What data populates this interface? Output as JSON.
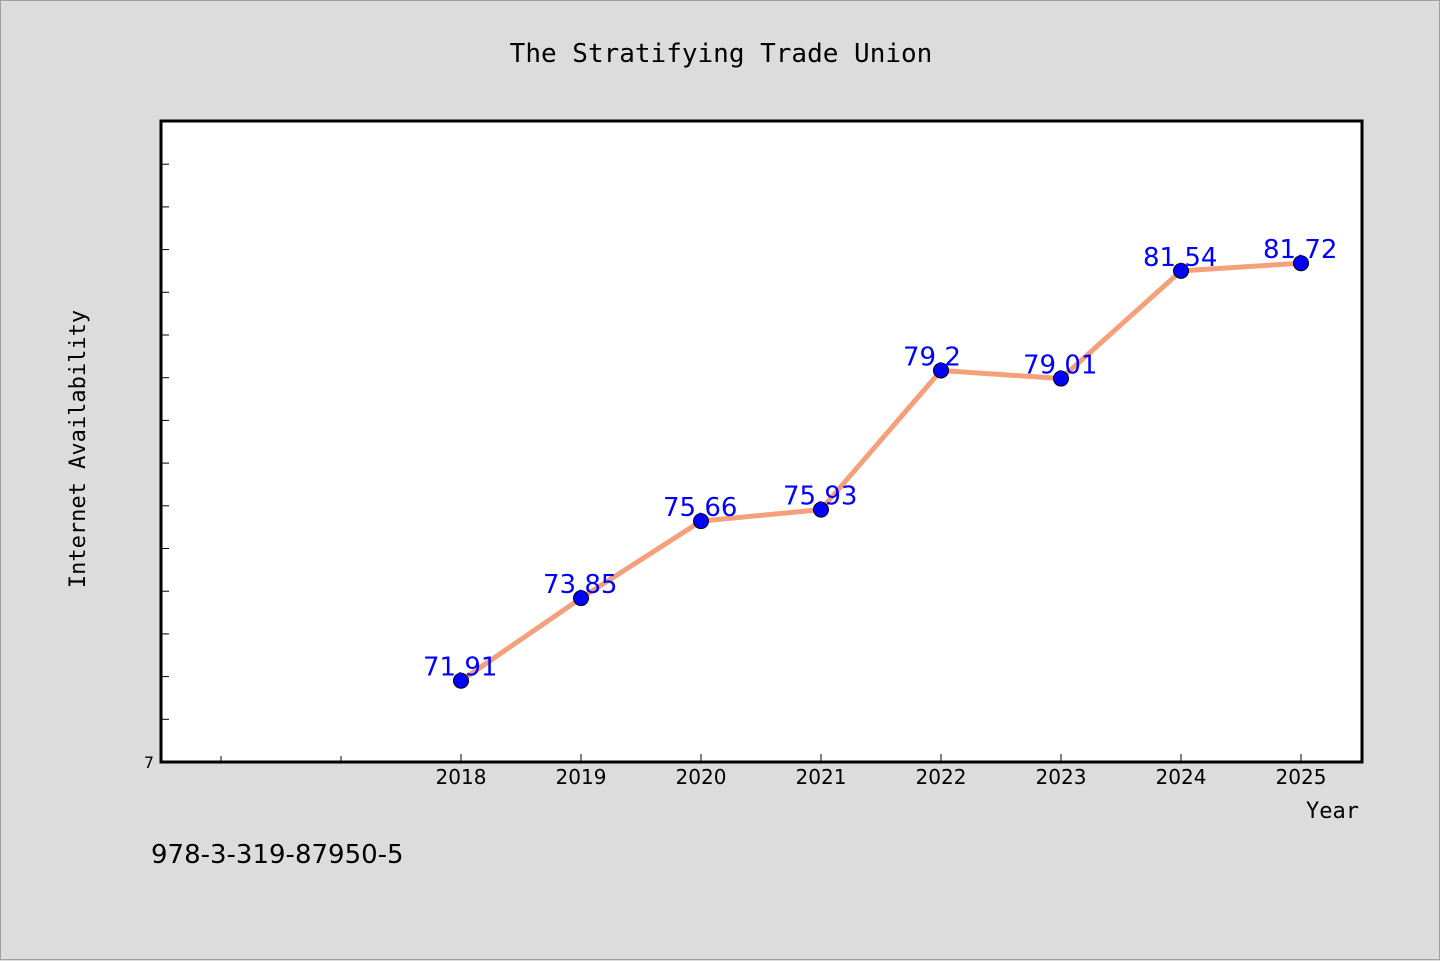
{
  "chart_data": {
    "type": "line",
    "title": "The Stratifying Trade Union",
    "xlabel": "Year",
    "ylabel": "Internet Availability",
    "categories": [
      "2018",
      "2019",
      "2020",
      "2021",
      "2022",
      "2023",
      "2024",
      "2025"
    ],
    "series": [
      {
        "values": [
          71.91,
          73.85,
          75.66,
          75.93,
          79.2,
          79.01,
          81.54,
          81.72
        ],
        "data_labels": [
          "71.91",
          "73.85",
          "75.66",
          "75.93",
          "79.2",
          "79.01",
          "81.54",
          "81.72"
        ]
      }
    ],
    "y_tick_labels": [
      "7"
    ],
    "grid": false,
    "colors": {
      "line": "#f4a07a",
      "marker": "#0000ff",
      "label": "#0000ff",
      "plot_background": "#ffffff",
      "page_background": "#dcdcdc"
    }
  },
  "footer": {
    "isbn": "978-3-319-87950-5"
  }
}
